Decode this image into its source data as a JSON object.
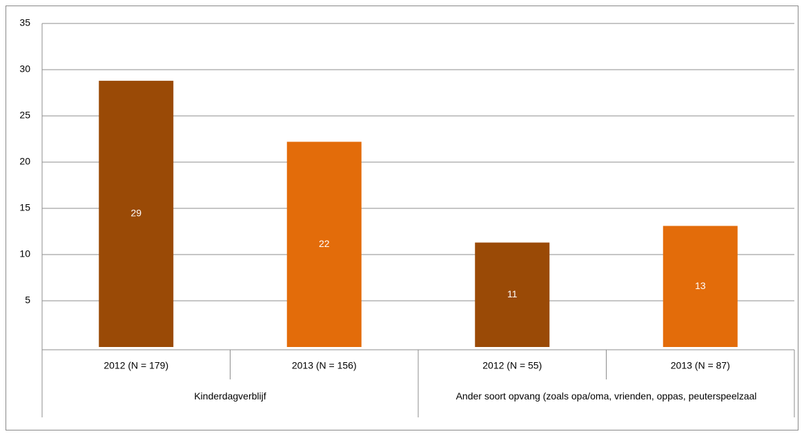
{
  "chart_data": {
    "type": "bar",
    "categories": [
      "2012 (N = 179)",
      "2013 (N = 156)",
      "2012 (N = 55)",
      "2013 (N = 87)"
    ],
    "groups": [
      "Kinderdagverblijf",
      "Ander soort opvang (zoals opa/oma, vrienden, oppas, peuterspeelzaal"
    ],
    "values": [
      28.8,
      22.2,
      11.3,
      13.1
    ],
    "value_labels": [
      "29",
      "22",
      "11",
      "13"
    ],
    "colors": [
      "#9a4a06",
      "#e36c0a",
      "#9a4a06",
      "#e36c0a"
    ],
    "ylim": [
      0,
      35
    ],
    "yticks": [
      5,
      10,
      15,
      20,
      25,
      30,
      35
    ],
    "grid": true
  }
}
